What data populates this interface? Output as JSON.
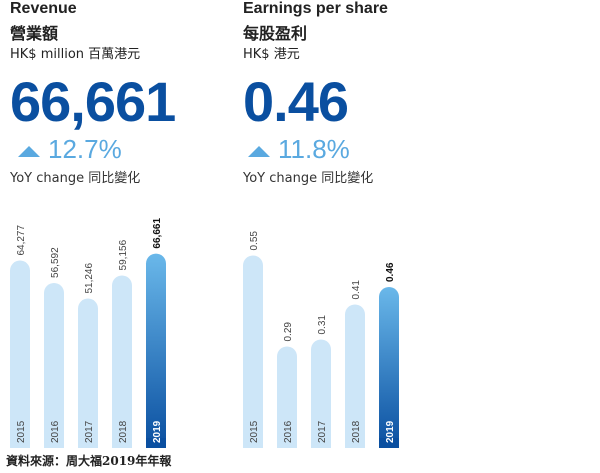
{
  "revenue": {
    "title": "Revenue",
    "title_zh": "營業額",
    "unit": "HK$ million 百萬港元",
    "headline": "66,661",
    "change": "12.7%",
    "yoy_label": "YoY change 同比變化"
  },
  "eps": {
    "title": "Earnings per share",
    "title_zh": "每股盈利",
    "unit": "HK$ 港元",
    "headline": "0.46",
    "change": "11.8%",
    "yoy_label": "YoY change 同比變化"
  },
  "footer": "資料來源：周大福2019年年報",
  "colors": {
    "accent": "#0a4fa0",
    "light_bar": "#cde6f8",
    "highlight_top": "#6ab8ea",
    "highlight_bottom": "#0a4fa0",
    "up_arrow": "#5aa9e0"
  },
  "chart_data": [
    {
      "type": "bar",
      "categories": [
        "2015",
        "2016",
        "2017",
        "2018",
        "2019"
      ],
      "values": [
        64277,
        56592,
        51246,
        59156,
        66661
      ],
      "value_labels": [
        "64,277",
        "56,592",
        "51,246",
        "59,156",
        "66,661"
      ],
      "title": "Revenue",
      "ylim": [
        0,
        72000
      ],
      "highlight": "2019",
      "grid": false
    },
    {
      "type": "bar",
      "categories": [
        "2015",
        "2016",
        "2017",
        "2018",
        "2019"
      ],
      "values": [
        0.55,
        0.29,
        0.31,
        0.41,
        0.46
      ],
      "value_labels": [
        "0.55",
        "0.29",
        "0.31",
        "0.41",
        "0.46"
      ],
      "title": "Earnings per share",
      "ylim": [
        0,
        0.6
      ],
      "highlight": "2019",
      "grid": false
    }
  ]
}
